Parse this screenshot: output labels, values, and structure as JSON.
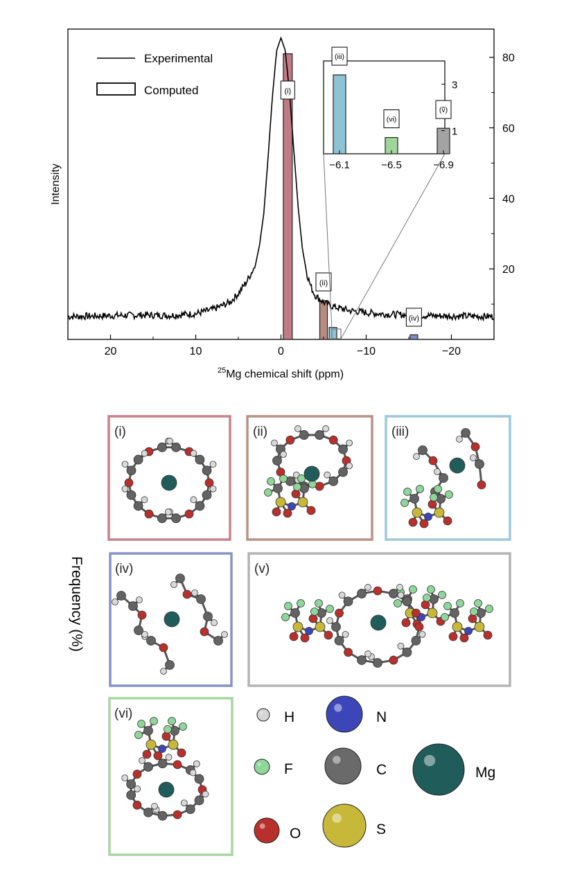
{
  "chart_data": {
    "type": "bar",
    "xlabel_sup": "25",
    "xlabel": "Mg chemical shift (ppm)",
    "ylabel": "Intensity",
    "y2label": "Frequency (%)",
    "xlim": [
      25,
      -25
    ],
    "x_ticks": [
      20,
      10,
      0,
      -10,
      -20
    ],
    "x_tick_labels": [
      "20",
      "10",
      "0",
      "−10",
      "−20"
    ],
    "ylim": [
      0,
      88
    ],
    "y_ticks": [
      20,
      40,
      60,
      80
    ],
    "y_tick_labels": [
      "20",
      "40",
      "60",
      "80"
    ],
    "legend": [
      "Experimental",
      "Computed"
    ],
    "legend_position": "top-left",
    "grid": false,
    "experimental": {
      "name": "Experimental",
      "x": [
        25,
        22,
        19,
        16,
        13,
        10,
        8,
        6,
        5,
        4,
        3,
        2.5,
        2,
        1.5,
        1,
        0.5,
        0,
        -0.5,
        -1,
        -1.5,
        -2,
        -2.5,
        -3,
        -3.5,
        -4,
        -5,
        -6,
        -8,
        -10,
        -12,
        -15,
        -18,
        -21,
        -25
      ],
      "y": [
        6.5,
        6.6,
        6.8,
        6.9,
        6.8,
        7.3,
        8.5,
        10.5,
        13,
        16.5,
        21,
        27,
        36,
        52,
        69,
        82,
        85.5,
        82,
        70,
        54,
        38,
        26,
        19,
        15,
        12.5,
        10.5,
        9.4,
        8.2,
        7.6,
        7.2,
        6.9,
        6.7,
        6.6,
        6.5
      ]
    },
    "computed": {
      "name": "Computed",
      "bars": [
        {
          "label": "(i)",
          "x": -0.8,
          "value": 81,
          "color": "#c17b86"
        },
        {
          "label": "(ii)",
          "x": -5.0,
          "value": 11,
          "color": "#b88b80"
        },
        {
          "label": "(iii)",
          "x": -6.1,
          "value": 3.4,
          "color": "#8ec3d6"
        },
        {
          "label": "(iv)",
          "x": -15.6,
          "value": 1.3,
          "color": "#7c8cc4"
        },
        {
          "label": "(vi)",
          "x": -6.5,
          "value": 0.7,
          "color": "#9fd59a"
        },
        {
          "label": "(v)",
          "x": -6.9,
          "value": 1.1,
          "color": "#a3a3a3"
        }
      ]
    },
    "inset": {
      "x_ticks": [
        -6.1,
        -6.5,
        -6.9
      ],
      "x_tick_labels": [
        "−6.1",
        "−6.5",
        "−6.9"
      ],
      "y_ticks": [
        1,
        3
      ],
      "y_tick_labels": [
        "1",
        "3"
      ],
      "ylim": [
        0,
        4
      ],
      "bars": [
        {
          "label": "(iii)",
          "x": -6.1,
          "value": 3.4,
          "color": "#8ec3d6"
        },
        {
          "label": "(vi)",
          "x": -6.5,
          "value": 0.7,
          "color": "#9fd59a"
        },
        {
          "label": "(v)",
          "x": -6.9,
          "value": 1.1,
          "color": "#a3a3a3"
        }
      ]
    }
  },
  "structures": {
    "panels": [
      {
        "label": "(i)",
        "border": "#c98189"
      },
      {
        "label": "(ii)",
        "border": "#b89184"
      },
      {
        "label": "(iii)",
        "border": "#9ec9d7"
      },
      {
        "label": "(iv)",
        "border": "#8792c6"
      },
      {
        "label": "(v)",
        "border": "#b4b4b4"
      },
      {
        "label": "(vi)",
        "border": "#a8d6a2"
      }
    ],
    "legend": [
      {
        "symbol": "H",
        "color": "#d6d6d6"
      },
      {
        "symbol": "N",
        "color": "#3d46b8"
      },
      {
        "symbol": "F",
        "color": "#8fd69a"
      },
      {
        "symbol": "C",
        "color": "#6a6a6a"
      },
      {
        "symbol": "Mg",
        "color": "#1f5c5a"
      },
      {
        "symbol": "O",
        "color": "#b8302c"
      },
      {
        "symbol": "S",
        "color": "#c7b83a"
      }
    ]
  }
}
